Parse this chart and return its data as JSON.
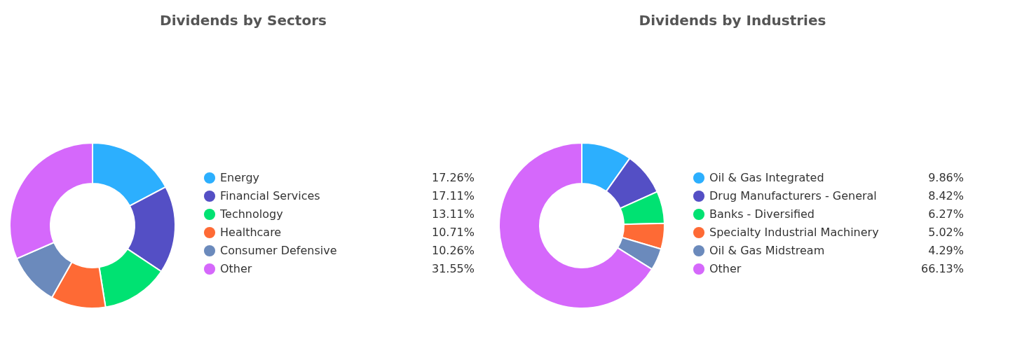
{
  "chart_data": [
    {
      "type": "donut",
      "title": "Dividends by Sectors",
      "legend": "right",
      "categories": [
        "Energy",
        "Financial Services",
        "Technology",
        "Healthcare",
        "Consumer Defensive",
        "Other"
      ],
      "values": [
        17.26,
        17.11,
        13.11,
        10.71,
        10.26,
        31.55
      ],
      "value_labels": [
        "17.26%",
        "17.11%",
        "13.11%",
        "10.71%",
        "10.26%",
        "31.55%"
      ],
      "colors": [
        "#2caffe",
        "#544fc5",
        "#00e272",
        "#fe6a35",
        "#6b8abc",
        "#d568fb"
      ]
    },
    {
      "type": "donut",
      "title": "Dividends by Industries",
      "legend": "right",
      "categories": [
        "Oil & Gas Integrated",
        "Drug Manufacturers - General",
        "Banks - Diversified",
        "Specialty Industrial Machinery",
        "Oil & Gas Midstream",
        "Other"
      ],
      "values": [
        9.86,
        8.42,
        6.27,
        5.02,
        4.29,
        66.13
      ],
      "value_labels": [
        "9.86%",
        "8.42%",
        "6.27%",
        "5.02%",
        "4.29%",
        "66.13%"
      ],
      "colors": [
        "#2caffe",
        "#544fc5",
        "#00e272",
        "#fe6a35",
        "#6b8abc",
        "#d568fb"
      ]
    }
  ]
}
